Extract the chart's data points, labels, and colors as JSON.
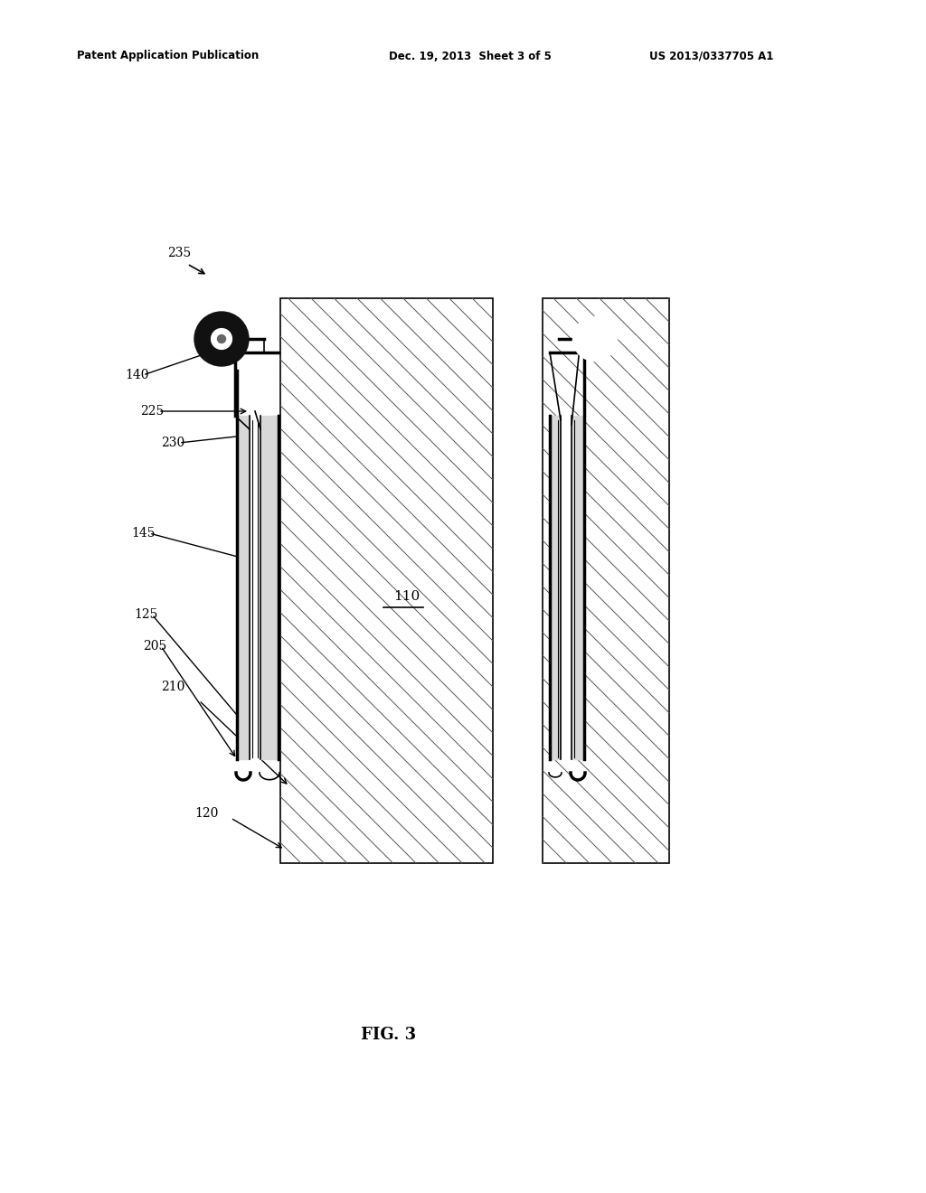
{
  "title_left": "Patent Application Publication",
  "title_mid": "Dec. 19, 2013  Sheet 3 of 5",
  "title_right": "US 2013/0337705 A1",
  "fig_label": "FIG. 3",
  "bg_color": "#ffffff",
  "line_color": "#000000"
}
